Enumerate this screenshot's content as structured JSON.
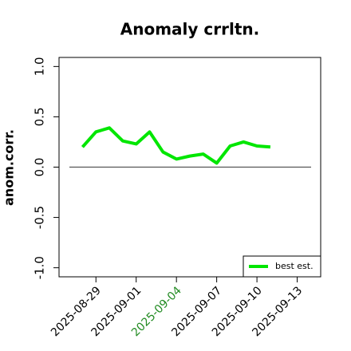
{
  "chart_data": {
    "type": "line",
    "title": "Anomaly crrltn.",
    "ylabel": "anom.corr.",
    "x": [
      "2025-08-28",
      "2025-08-29",
      "2025-08-30",
      "2025-08-31",
      "2025-09-01",
      "2025-09-02",
      "2025-09-03",
      "2025-09-04",
      "2025-09-05",
      "2025-09-06",
      "2025-09-07",
      "2025-09-08",
      "2025-09-09",
      "2025-09-10",
      "2025-09-11"
    ],
    "series": [
      {
        "name": "best est.",
        "color": "#00e600",
        "values": [
          0.2,
          0.35,
          0.39,
          0.26,
          0.23,
          0.35,
          0.15,
          0.08,
          0.11,
          0.13,
          0.04,
          0.21,
          0.25,
          0.21,
          0.2
        ]
      }
    ],
    "reference_line": 0,
    "xlim": [
      "2025-08-26T06:00Z",
      "2025-09-14T18:00Z"
    ],
    "xticks": [
      "2025-08-29",
      "2025-09-01",
      "2025-09-04",
      "2025-09-07",
      "2025-09-10",
      "2025-09-13"
    ],
    "xtick_label_colors": [
      "#000000",
      "#000000",
      "#228b22",
      "#000000",
      "#000000",
      "#000000"
    ],
    "ylim": [
      -1.09,
      1.09
    ],
    "yticks": [
      {
        "value": -1,
        "label": "-1.0"
      },
      -0.5,
      {
        "value": 0,
        "label": "0.0"
      },
      0.5,
      {
        "value": 1,
        "label": "1.0"
      }
    ],
    "legend": "bottom right"
  }
}
